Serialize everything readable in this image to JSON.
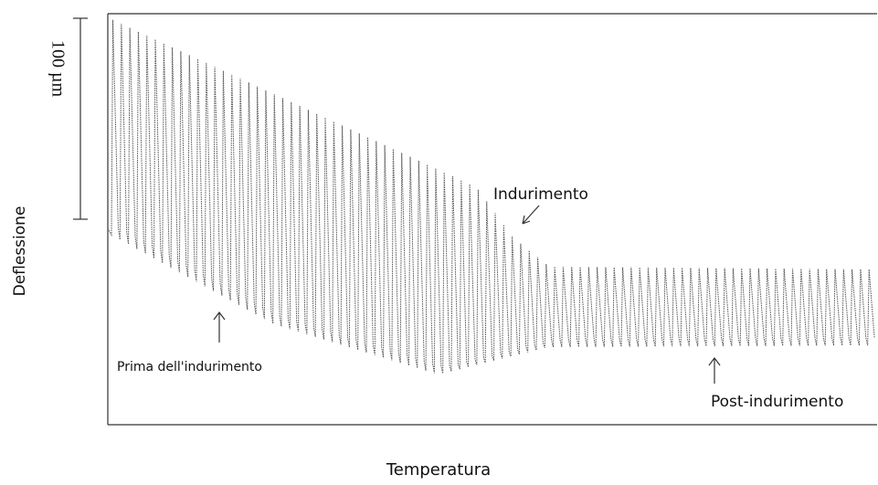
{
  "labels": {
    "scale_bar": "100 µm",
    "y_axis": "Deflessione",
    "x_axis": "Temperatura",
    "hardening": "Indurimento",
    "before": "Prima dell'indurimento",
    "after": "Post-indurimento"
  }
}
